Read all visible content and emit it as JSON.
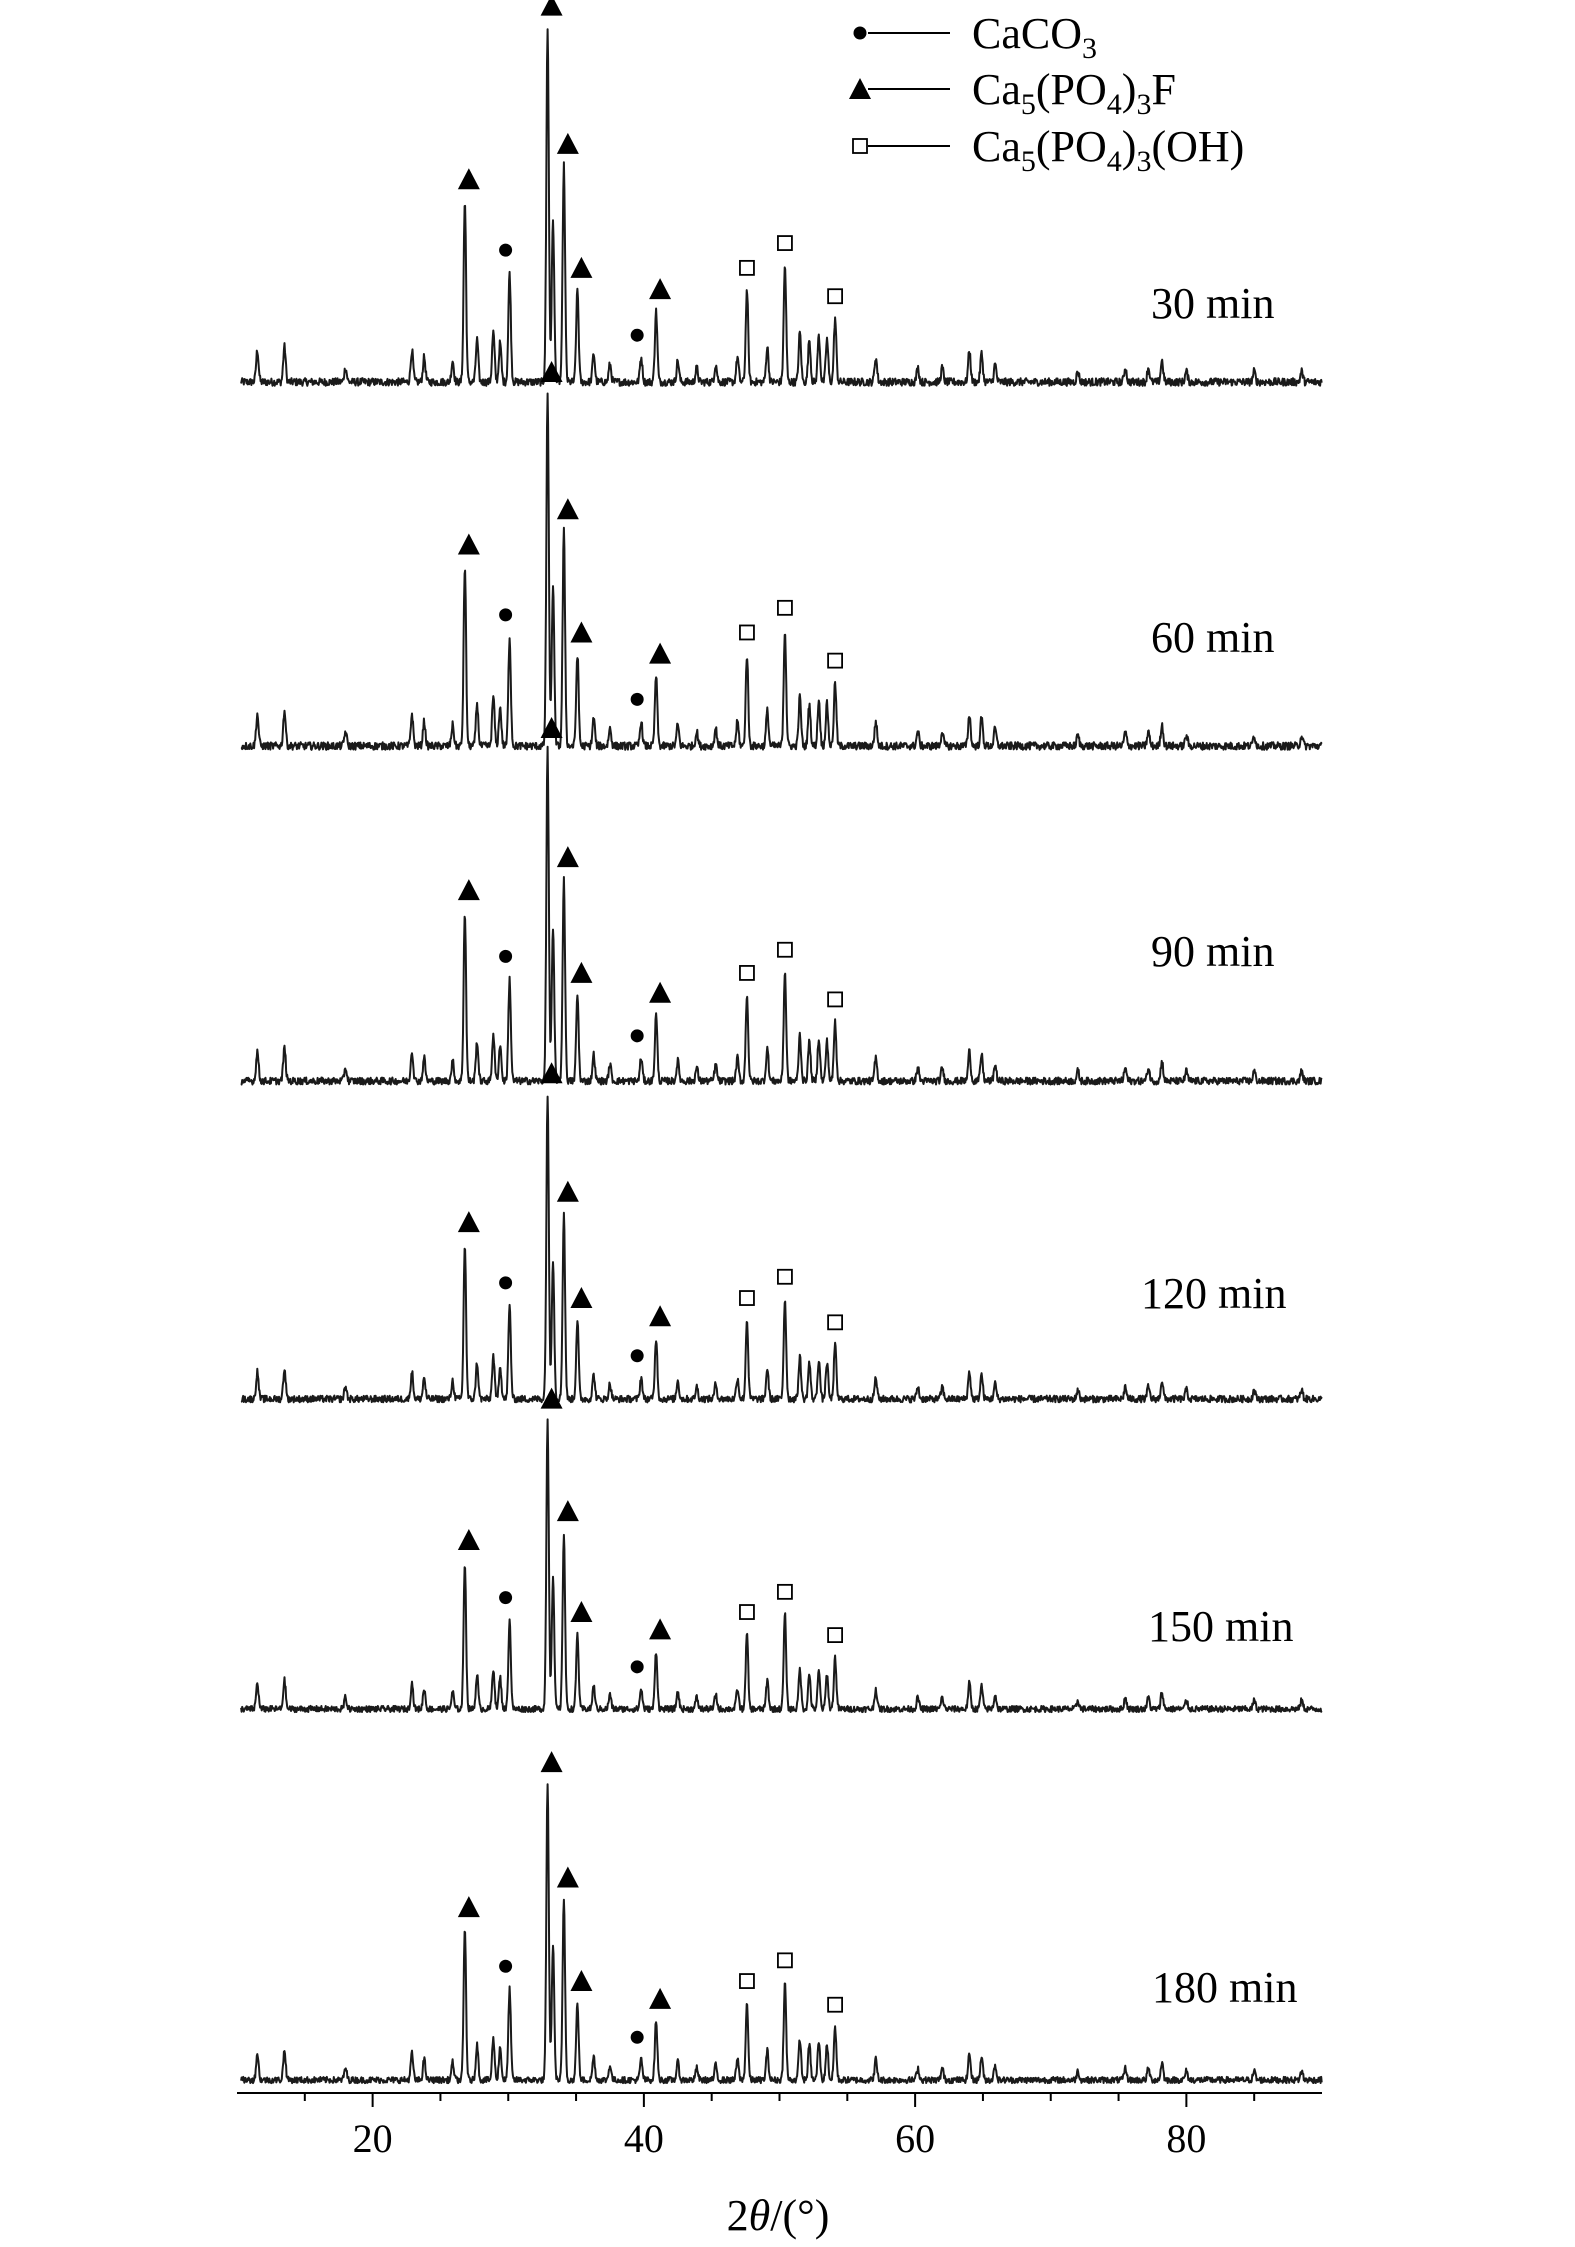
{
  "chart_data": {
    "type": "line",
    "xlabel": "2θ/(°)",
    "xlabel_parts": {
      "pre": "2",
      "italic": "θ",
      "post": "/(°)"
    },
    "xlim": [
      10,
      90
    ],
    "x_ticks": [
      20,
      40,
      60,
      80
    ],
    "y_axis_shown": false,
    "stacked_offset": true,
    "legend": {
      "placement": "top-right",
      "entries": [
        {
          "marker": "circle",
          "label": "CaCO3",
          "parts": [
            "CaCO",
            "3",
            ""
          ]
        },
        {
          "marker": "triangle",
          "label": "Ca5(PO4)3F",
          "parts": [
            "Ca",
            "5",
            "(PO",
            "4",
            ")",
            "3",
            "F"
          ]
        },
        {
          "marker": "square",
          "label": "Ca5(PO4)3(OH)",
          "parts": [
            "Ca",
            "5",
            "(PO",
            "4",
            ")",
            "3",
            "(OH)"
          ]
        }
      ]
    },
    "series": [
      {
        "name": "30 min"
      },
      {
        "name": "60 min"
      },
      {
        "name": "90 min"
      },
      {
        "name": "120 min"
      },
      {
        "name": "150 min"
      },
      {
        "name": "180 min"
      }
    ],
    "peaks": [
      {
        "x": 11.5,
        "h": 0.09,
        "phase": null
      },
      {
        "x": 13.5,
        "h": 0.1,
        "phase": null
      },
      {
        "x": 18.0,
        "h": 0.04,
        "phase": null
      },
      {
        "x": 22.9,
        "h": 0.09,
        "phase": null
      },
      {
        "x": 23.8,
        "h": 0.07,
        "phase": null
      },
      {
        "x": 25.9,
        "h": 0.06,
        "phase": null
      },
      {
        "x": 26.8,
        "h": 0.51,
        "phase": "triangle"
      },
      {
        "x": 27.7,
        "h": 0.12,
        "phase": null
      },
      {
        "x": 28.9,
        "h": 0.14,
        "phase": null
      },
      {
        "x": 29.4,
        "h": 0.11,
        "phase": null
      },
      {
        "x": 30.1,
        "h": 0.31,
        "phase": "circle"
      },
      {
        "x": 32.9,
        "h": 1.0,
        "phase": "triangle"
      },
      {
        "x": 33.3,
        "h": 0.46,
        "phase": null
      },
      {
        "x": 34.1,
        "h": 0.61,
        "phase": "triangle"
      },
      {
        "x": 35.1,
        "h": 0.26,
        "phase": "triangle"
      },
      {
        "x": 36.3,
        "h": 0.08,
        "phase": null
      },
      {
        "x": 37.5,
        "h": 0.05,
        "phase": null
      },
      {
        "x": 39.8,
        "h": 0.07,
        "phase": "circle"
      },
      {
        "x": 40.9,
        "h": 0.2,
        "phase": "triangle"
      },
      {
        "x": 42.5,
        "h": 0.06,
        "phase": null
      },
      {
        "x": 43.9,
        "h": 0.04,
        "phase": null
      },
      {
        "x": 45.3,
        "h": 0.05,
        "phase": null
      },
      {
        "x": 46.9,
        "h": 0.07,
        "phase": null
      },
      {
        "x": 47.6,
        "h": 0.26,
        "phase": "square"
      },
      {
        "x": 49.1,
        "h": 0.1,
        "phase": null
      },
      {
        "x": 50.4,
        "h": 0.33,
        "phase": "square"
      },
      {
        "x": 51.5,
        "h": 0.14,
        "phase": null
      },
      {
        "x": 52.2,
        "h": 0.12,
        "phase": null
      },
      {
        "x": 52.9,
        "h": 0.13,
        "phase": null
      },
      {
        "x": 53.5,
        "h": 0.12,
        "phase": null
      },
      {
        "x": 54.1,
        "h": 0.18,
        "phase": "square"
      },
      {
        "x": 57.1,
        "h": 0.07,
        "phase": null
      },
      {
        "x": 60.2,
        "h": 0.04,
        "phase": null
      },
      {
        "x": 62.0,
        "h": 0.04,
        "phase": null
      },
      {
        "x": 64.0,
        "h": 0.09,
        "phase": null
      },
      {
        "x": 64.9,
        "h": 0.08,
        "phase": null
      },
      {
        "x": 65.9,
        "h": 0.05,
        "phase": null
      },
      {
        "x": 72.0,
        "h": 0.03,
        "phase": null
      },
      {
        "x": 75.5,
        "h": 0.04,
        "phase": null
      },
      {
        "x": 77.2,
        "h": 0.04,
        "phase": null
      },
      {
        "x": 78.2,
        "h": 0.06,
        "phase": null
      },
      {
        "x": 80.0,
        "h": 0.03,
        "phase": null
      },
      {
        "x": 85.0,
        "h": 0.03,
        "phase": null
      },
      {
        "x": 88.5,
        "h": 0.03,
        "phase": null
      }
    ]
  }
}
